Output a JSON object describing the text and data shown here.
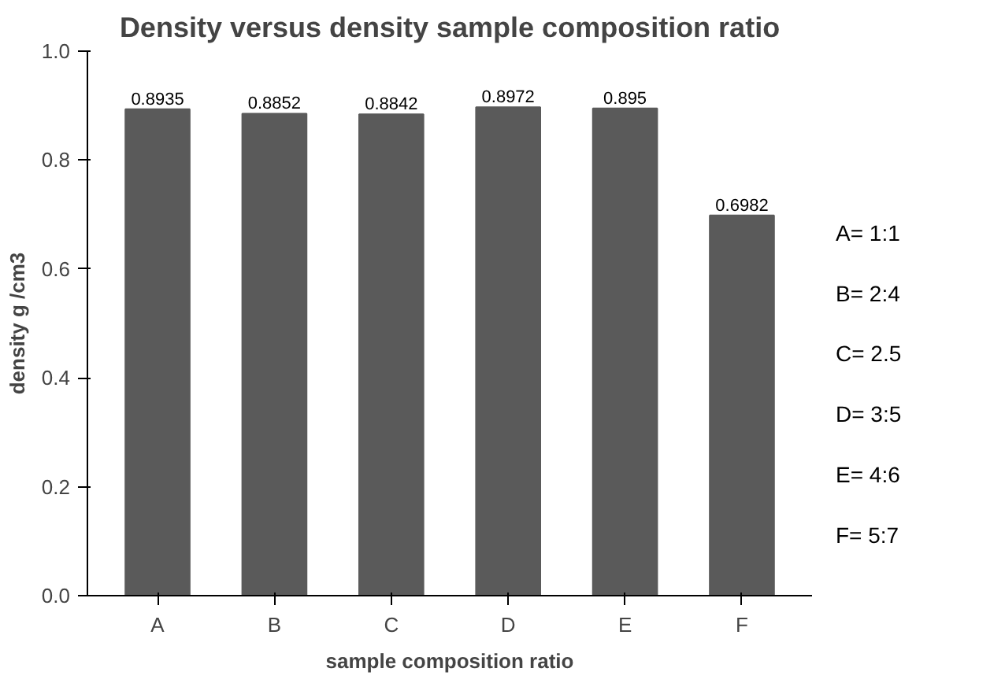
{
  "chart_data": {
    "type": "bar",
    "title": "Density versus density sample composition ratio",
    "xlabel": "sample composition ratio",
    "ylabel": "density g /cm3",
    "categories": [
      "A",
      "B",
      "C",
      "D",
      "E",
      "F"
    ],
    "values": [
      0.8935,
      0.8852,
      0.8842,
      0.8972,
      0.895,
      0.6982
    ],
    "color": "#5a5a5a",
    "data_labels": true,
    "grid": false,
    "ylim": [
      0,
      1
    ],
    "yticks": [
      {
        "value": 0,
        "label": "0.0"
      },
      {
        "value": 0.2,
        "label": "0.2"
      },
      {
        "value": 0.4,
        "label": "0.4"
      },
      {
        "value": 0.6,
        "label": "0.6"
      },
      {
        "value": 0.8,
        "label": "0.8"
      },
      {
        "value": 1,
        "label": "1.0"
      }
    ],
    "annotations": [
      "A= 1:1",
      "B= 2:4",
      "C= 2.5",
      "D= 3:5",
      "E= 4:6",
      "F= 5:7"
    ]
  }
}
